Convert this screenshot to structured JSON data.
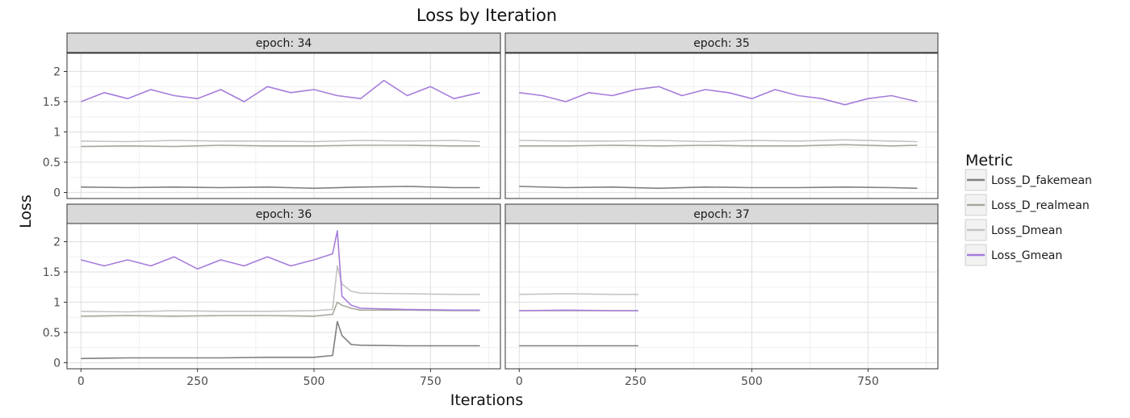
{
  "chart_data": {
    "type": "line",
    "title": "Loss by Iteration",
    "xlabel": "Iterations",
    "ylabel": "Loss",
    "xlim": [
      -30,
      900
    ],
    "ylim": [
      -0.1,
      2.3
    ],
    "x_ticks": [
      0,
      250,
      500,
      750
    ],
    "y_ticks": [
      0,
      0.5,
      1,
      1.5,
      2
    ],
    "y_tick_labels": [
      "0",
      "0.5",
      "1",
      "1.5",
      "2"
    ],
    "grid": true,
    "legend_position": "right",
    "legend": {
      "title": "Metric",
      "entries": [
        {
          "name": "Loss_D_fakemean",
          "color": "#7f7f7f"
        },
        {
          "name": "Loss_D_realmean",
          "color": "#a7a79e"
        },
        {
          "name": "Loss_Dmean",
          "color": "#c3c3c3"
        },
        {
          "name": "Loss_Gmean",
          "color": "#a57ddb"
        }
      ]
    },
    "panels": [
      {
        "label": "epoch: 34",
        "series": [
          {
            "name": "Loss_D_fakemean",
            "x": [
              0,
              100,
              200,
              300,
              400,
              500,
              600,
              700,
              800,
              856
            ],
            "y": [
              0.09,
              0.08,
              0.09,
              0.08,
              0.09,
              0.07,
              0.09,
              0.1,
              0.08,
              0.08
            ]
          },
          {
            "name": "Loss_D_realmean",
            "x": [
              0,
              100,
              200,
              300,
              400,
              500,
              600,
              700,
              800,
              856
            ],
            "y": [
              0.76,
              0.77,
              0.76,
              0.78,
              0.77,
              0.77,
              0.78,
              0.78,
              0.77,
              0.77
            ]
          },
          {
            "name": "Loss_Dmean",
            "x": [
              0,
              100,
              200,
              300,
              400,
              500,
              600,
              700,
              800,
              856
            ],
            "y": [
              0.85,
              0.84,
              0.86,
              0.85,
              0.85,
              0.84,
              0.86,
              0.85,
              0.86,
              0.84
            ]
          },
          {
            "name": "Loss_Gmean",
            "x": [
              0,
              50,
              100,
              150,
              200,
              250,
              300,
              350,
              400,
              450,
              500,
              550,
              600,
              650,
              700,
              750,
              800,
              856
            ],
            "y": [
              1.5,
              1.65,
              1.55,
              1.7,
              1.6,
              1.55,
              1.7,
              1.5,
              1.75,
              1.65,
              1.7,
              1.6,
              1.55,
              1.85,
              1.6,
              1.75,
              1.55,
              1.65
            ]
          }
        ]
      },
      {
        "label": "epoch: 35",
        "series": [
          {
            "name": "Loss_D_fakemean",
            "x": [
              0,
              100,
              200,
              300,
              400,
              500,
              600,
              700,
              800,
              856
            ],
            "y": [
              0.1,
              0.08,
              0.09,
              0.07,
              0.09,
              0.08,
              0.08,
              0.09,
              0.08,
              0.07
            ]
          },
          {
            "name": "Loss_D_realmean",
            "x": [
              0,
              100,
              200,
              300,
              400,
              500,
              600,
              700,
              800,
              856
            ],
            "y": [
              0.77,
              0.77,
              0.78,
              0.77,
              0.78,
              0.77,
              0.77,
              0.79,
              0.77,
              0.78
            ]
          },
          {
            "name": "Loss_Dmean",
            "x": [
              0,
              100,
              200,
              300,
              400,
              500,
              600,
              700,
              800,
              856
            ],
            "y": [
              0.86,
              0.85,
              0.85,
              0.86,
              0.84,
              0.86,
              0.85,
              0.87,
              0.85,
              0.84
            ]
          },
          {
            "name": "Loss_Gmean",
            "x": [
              0,
              50,
              100,
              150,
              200,
              250,
              300,
              350,
              400,
              450,
              500,
              550,
              600,
              650,
              700,
              750,
              800,
              856
            ],
            "y": [
              1.65,
              1.6,
              1.5,
              1.65,
              1.6,
              1.7,
              1.75,
              1.6,
              1.7,
              1.65,
              1.55,
              1.7,
              1.6,
              1.55,
              1.45,
              1.55,
              1.6,
              1.5
            ]
          }
        ]
      },
      {
        "label": "epoch: 36",
        "series": [
          {
            "name": "Loss_D_fakemean",
            "x": [
              0,
              100,
              200,
              300,
              400,
              500,
              540,
              550,
              560,
              580,
              600,
              700,
              800,
              856
            ],
            "y": [
              0.07,
              0.08,
              0.08,
              0.08,
              0.09,
              0.09,
              0.12,
              0.68,
              0.45,
              0.3,
              0.29,
              0.28,
              0.28,
              0.28
            ]
          },
          {
            "name": "Loss_D_realmean",
            "x": [
              0,
              100,
              200,
              300,
              400,
              500,
              540,
              550,
              560,
              580,
              600,
              700,
              800,
              856
            ],
            "y": [
              0.77,
              0.78,
              0.77,
              0.78,
              0.78,
              0.77,
              0.8,
              1.0,
              0.95,
              0.9,
              0.87,
              0.87,
              0.86,
              0.86
            ]
          },
          {
            "name": "Loss_Dmean",
            "x": [
              0,
              100,
              200,
              300,
              400,
              500,
              540,
              550,
              560,
              580,
              600,
              700,
              800,
              856
            ],
            "y": [
              0.85,
              0.84,
              0.86,
              0.85,
              0.85,
              0.86,
              0.88,
              1.6,
              1.3,
              1.18,
              1.15,
              1.14,
              1.13,
              1.13
            ]
          },
          {
            "name": "Loss_Gmean",
            "x": [
              0,
              50,
              100,
              150,
              200,
              250,
              300,
              350,
              400,
              450,
              500,
              540,
              550,
              560,
              580,
              600,
              700,
              800,
              856
            ],
            "y": [
              1.7,
              1.6,
              1.7,
              1.6,
              1.75,
              1.55,
              1.7,
              1.6,
              1.75,
              1.6,
              1.7,
              1.8,
              2.18,
              1.1,
              0.95,
              0.9,
              0.88,
              0.87,
              0.87
            ]
          }
        ]
      },
      {
        "label": "epoch: 37",
        "series": [
          {
            "name": "Loss_D_fakemean",
            "x": [
              0,
              100,
              200,
              256
            ],
            "y": [
              0.28,
              0.28,
              0.28,
              0.28
            ]
          },
          {
            "name": "Loss_D_realmean",
            "x": [
              0,
              100,
              200,
              256
            ],
            "y": [
              0.86,
              0.86,
              0.86,
              0.86
            ]
          },
          {
            "name": "Loss_Dmean",
            "x": [
              0,
              100,
              200,
              256
            ],
            "y": [
              1.13,
              1.14,
              1.13,
              1.13
            ]
          },
          {
            "name": "Loss_Gmean",
            "x": [
              0,
              100,
              200,
              256
            ],
            "y": [
              0.86,
              0.87,
              0.86,
              0.86
            ]
          }
        ]
      }
    ]
  }
}
